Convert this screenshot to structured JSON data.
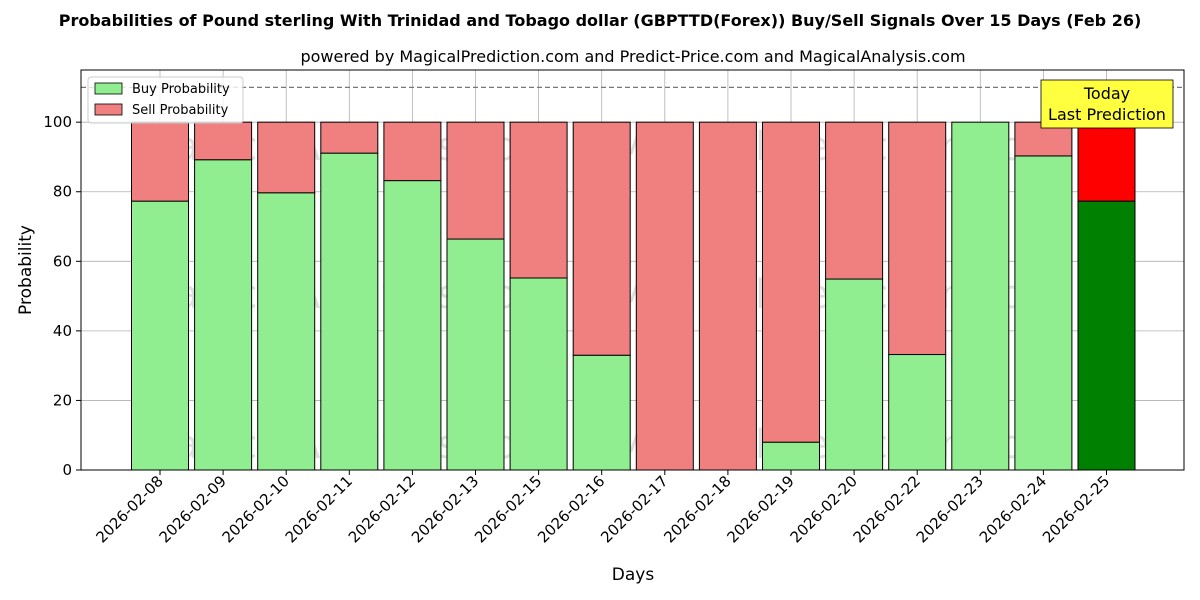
{
  "chart_data": {
    "type": "bar",
    "stacked": true,
    "title": "Probabilities of Pound sterling With Trinidad and Tobago dollar (GBPTTD(Forex)) Buy/Sell Signals Over 15 Days (Feb 26)",
    "subtitle": "powered by MagicalPrediction.com and Predict-Price.com and MagicalAnalysis.com",
    "xlabel": "Days",
    "ylabel": "Probability",
    "ylim": [
      0,
      115
    ],
    "yticks": [
      0,
      20,
      40,
      60,
      80,
      100
    ],
    "grid": true,
    "legend_position": "top-left",
    "reference_line": 110,
    "categories": [
      "2026-02-08",
      "2026-02-09",
      "2026-02-10",
      "2026-02-11",
      "2026-02-12",
      "2026-02-13",
      "2026-02-15",
      "2026-02-16",
      "2026-02-17",
      "2026-02-18",
      "2026-02-19",
      "2026-02-20",
      "2026-02-22",
      "2026-02-23",
      "2026-02-24",
      "2026-02-25"
    ],
    "series": [
      {
        "name": "Buy Probability",
        "color": "#90EE90",
        "highlight_color": "#008000",
        "values": [
          77.3,
          89.2,
          79.7,
          91.1,
          83.2,
          66.4,
          55.2,
          33.0,
          0,
          0,
          8.0,
          54.9,
          33.2,
          100,
          90.3,
          77.3
        ]
      },
      {
        "name": "Sell Probability",
        "color": "#F08080",
        "highlight_color": "#FF0000",
        "values": [
          22.7,
          10.8,
          20.3,
          8.9,
          16.8,
          33.6,
          44.8,
          67.0,
          100,
          100,
          92.0,
          45.1,
          66.8,
          0,
          9.7,
          22.7
        ]
      }
    ],
    "highlight_index": 15,
    "annotation": {
      "line1": "Today",
      "line2": "Last Prediction",
      "color": "#FFFF40"
    },
    "watermarks": [
      "MagicalAnalysis.com",
      "MagicalPrediction.com"
    ]
  }
}
